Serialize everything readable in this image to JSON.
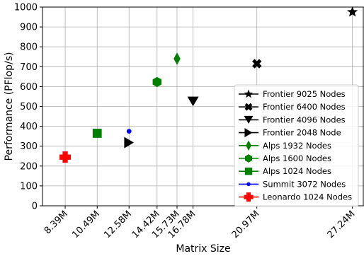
{
  "chart_data": {
    "type": "scatter",
    "title": "",
    "xlabel": "Matrix Size",
    "ylabel": "Performance (PFlop/s)",
    "ylim": [
      0,
      1000
    ],
    "yticks": [
      0,
      100,
      200,
      300,
      400,
      500,
      600,
      700,
      800,
      900,
      1000
    ],
    "xlim": [
      6.9,
      28.0
    ],
    "xticks": [
      {
        "value": 8.39,
        "label": "8.39M"
      },
      {
        "value": 10.49,
        "label": "10.49M"
      },
      {
        "value": 12.58,
        "label": "12.58M"
      },
      {
        "value": 14.42,
        "label": "14.42M"
      },
      {
        "value": 15.73,
        "label": "15.73M"
      },
      {
        "value": 16.78,
        "label": "16.78M"
      },
      {
        "value": 20.97,
        "label": "20.97M"
      },
      {
        "value": 27.24,
        "label": "27.24M"
      }
    ],
    "grid": true,
    "legend_position": "lower right",
    "series": [
      {
        "name": "Frontier 9025 Nodes",
        "marker": "star",
        "color": "#000000",
        "points": [
          {
            "x": 27.24,
            "y": 975
          }
        ]
      },
      {
        "name": "Frontier 6400 Nodes",
        "marker": "x",
        "color": "#000000",
        "points": [
          {
            "x": 20.97,
            "y": 715
          }
        ]
      },
      {
        "name": "Frontier 4096 Nodes",
        "marker": "triangle-down",
        "color": "#000000",
        "points": [
          {
            "x": 16.78,
            "y": 525
          }
        ]
      },
      {
        "name": "Frontier 2048 Node",
        "marker": "triangle-right",
        "color": "#000000",
        "points": [
          {
            "x": 12.58,
            "y": 318
          }
        ]
      },
      {
        "name": "Alps 1932 Nodes",
        "marker": "diamond",
        "color": "#008000",
        "points": [
          {
            "x": 15.73,
            "y": 740
          }
        ]
      },
      {
        "name": "Alps 1600 Nodes",
        "marker": "hexagon",
        "color": "#008000",
        "points": [
          {
            "x": 14.42,
            "y": 623
          }
        ]
      },
      {
        "name": "Alps 1024 Nodes",
        "marker": "square",
        "color": "#008000",
        "points": [
          {
            "x": 10.49,
            "y": 365
          }
        ]
      },
      {
        "name": "Summit 3072 Nodes",
        "marker": "circle",
        "color": "#0000ff",
        "points": [
          {
            "x": 12.58,
            "y": 375
          }
        ]
      },
      {
        "name": "Leonardo 1024 Nodes",
        "marker": "plus",
        "color": "#ff0000",
        "points": [
          {
            "x": 8.39,
            "y": 245
          }
        ]
      }
    ]
  }
}
